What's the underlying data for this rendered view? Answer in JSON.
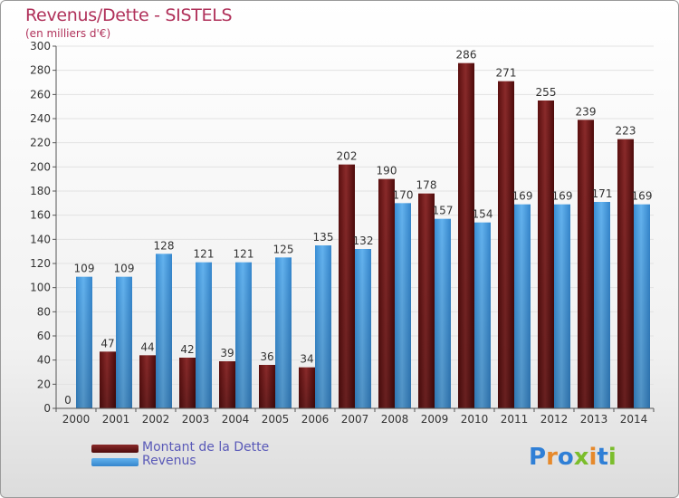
{
  "title": "Revenus/Dette - SISTELS",
  "subtitle": "(en milliers d'€)",
  "legend": {
    "debt": "Montant de la Dette",
    "revenue": "Revenus"
  },
  "logo": {
    "letters": [
      "P",
      "r",
      "o",
      "x",
      "i",
      "t",
      "i"
    ],
    "colors": [
      "#2f7fd6",
      "#e6892b",
      "#2f7fd6",
      "#7bbd2c",
      "#e6892b",
      "#2f7fd6",
      "#7bbd2c"
    ]
  },
  "colors": {
    "debt": "#7a1a1a",
    "revenue": "#4aa0e4",
    "title": "#b0315a",
    "grid": "#e3e3e3"
  },
  "chart_data": {
    "type": "bar",
    "title": "Revenus/Dette - SISTELS",
    "ylabel": "(en milliers d'€)",
    "xlabel": "",
    "ylim": [
      0,
      300
    ],
    "yticks": [
      0,
      20,
      40,
      60,
      80,
      100,
      120,
      140,
      160,
      180,
      200,
      220,
      240,
      260,
      280,
      300
    ],
    "categories": [
      "2000",
      "2001",
      "2002",
      "2003",
      "2004",
      "2005",
      "2006",
      "2007",
      "2008",
      "2009",
      "2010",
      "2011",
      "2012",
      "2013",
      "2014"
    ],
    "series": [
      {
        "name": "Montant de la Dette",
        "values": [
          0,
          47,
          44,
          42,
          39,
          36,
          34,
          202,
          190,
          178,
          286,
          271,
          255,
          239,
          223
        ]
      },
      {
        "name": "Revenus",
        "values": [
          109,
          109,
          128,
          121,
          121,
          125,
          135,
          132,
          170,
          157,
          154,
          169,
          169,
          171,
          169
        ]
      }
    ],
    "grid": true,
    "legend_position": "bottom-left"
  }
}
